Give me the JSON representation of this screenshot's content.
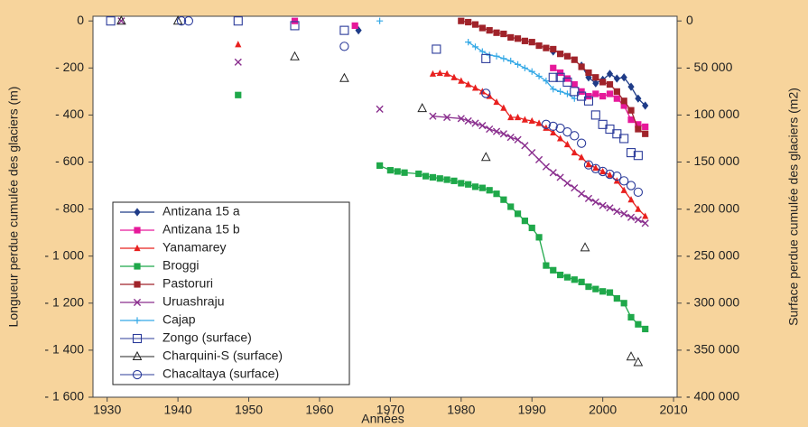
{
  "chart_data": {
    "type": "scatter",
    "xlabel": "Années",
    "ylabel": "Longueur perdue cumulée des glaciers (m)",
    "y2label": "Surface perdue cumulée des glaciers (m2)",
    "xlim": [
      1928,
      2010.5
    ],
    "xticks": [
      1930,
      1940,
      1950,
      1960,
      1970,
      1980,
      1990,
      2000,
      2010
    ],
    "ylim": [
      -1600,
      20
    ],
    "yticks": [
      0,
      {
        "value": -200,
        "label": "- 200"
      },
      {
        "value": -400,
        "label": "- 400"
      },
      {
        "value": -600,
        "label": "- 600"
      },
      {
        "value": -800,
        "label": "- 800"
      },
      {
        "value": -1000,
        "label": "- 1 000"
      },
      {
        "value": -1200,
        "label": "- 1 200"
      },
      {
        "value": -1400,
        "label": "- 1 400"
      },
      {
        "value": -1600,
        "label": "- 1 600"
      }
    ],
    "y2lim": [
      -400000,
      5000
    ],
    "y2ticks": [
      0,
      {
        "value": -50000,
        "label": "- 50 000"
      },
      {
        "value": -100000,
        "label": "- 100 000"
      },
      {
        "value": -150000,
        "label": "- 150 000"
      },
      {
        "value": -200000,
        "label": "- 200 000"
      },
      {
        "value": -250000,
        "label": "- 250 000"
      },
      {
        "value": -300000,
        "label": "- 300 000"
      },
      {
        "value": -350000,
        "label": "- 350 000"
      },
      {
        "value": -400000,
        "label": "- 400 000"
      }
    ],
    "legend": "lower-left",
    "series": [
      {
        "name": "Antizana 15 a",
        "color": "#1f3c88",
        "marker": "diamond",
        "line": true,
        "x": [
          1965.5,
          1993,
          1997,
          1998,
          1999,
          2000,
          2001,
          2002,
          2003,
          2004,
          2005,
          2006
        ],
        "values": [
          -40,
          -130,
          -190,
          -240,
          -265,
          -250,
          -225,
          -245,
          -240,
          -280,
          -330,
          -360
        ]
      },
      {
        "name": "Antizana 15 b",
        "color": "#e6199a",
        "marker": "square",
        "line": true,
        "x": [
          1956.5,
          1965,
          1993,
          1994,
          1995,
          1996,
          1997,
          1998,
          1999,
          2000,
          2001,
          2002,
          2003,
          2004,
          2005,
          2006
        ],
        "values": [
          0,
          -20,
          -200,
          -220,
          -245,
          -270,
          -300,
          -320,
          -310,
          -320,
          -310,
          -330,
          -360,
          -420,
          -440,
          -450
        ]
      },
      {
        "name": "Yanamarey",
        "color": "#e8201f",
        "marker": "triangle",
        "line": true,
        "x": [
          1948.5,
          1976,
          1977,
          1978,
          1979,
          1980,
          1981,
          1982,
          1983,
          1984,
          1985,
          1986,
          1987,
          1988,
          1989,
          1990,
          1991,
          1992,
          1993,
          1994,
          1995,
          1996,
          1997,
          1998,
          1999,
          2000,
          2001,
          2002,
          2003,
          2004,
          2005,
          2006
        ],
        "values": [
          -100,
          -225,
          -222,
          -225,
          -240,
          -255,
          -270,
          -285,
          -300,
          -320,
          -345,
          -370,
          -410,
          -410,
          -420,
          -425,
          -435,
          -455,
          -475,
          -500,
          -525,
          -560,
          -580,
          -610,
          -625,
          -640,
          -655,
          -680,
          -720,
          -760,
          -800,
          -830
        ]
      },
      {
        "name": "Broggi",
        "color": "#1fa84a",
        "marker": "square",
        "line": true,
        "x": [
          1948.5,
          1968.5,
          1970,
          1971,
          1972,
          1974,
          1975,
          1976,
          1977,
          1978,
          1979,
          1980,
          1981,
          1982,
          1983,
          1984,
          1985,
          1986,
          1987,
          1988,
          1989,
          1990,
          1991,
          1992,
          1993,
          1994,
          1995,
          1996,
          1997,
          1998,
          1999,
          2000,
          2001,
          2002,
          2003,
          2004,
          2005,
          2006
        ],
        "values": [
          -315,
          -615,
          -635,
          -640,
          -645,
          -650,
          -660,
          -665,
          -670,
          -675,
          -680,
          -690,
          -695,
          -705,
          -710,
          -720,
          -735,
          -760,
          -790,
          -820,
          -850,
          -880,
          -920,
          -1040,
          -1060,
          -1080,
          -1090,
          -1100,
          -1110,
          -1130,
          -1140,
          -1150,
          -1155,
          -1180,
          -1200,
          -1260,
          -1290,
          -1310
        ]
      },
      {
        "name": "Pastoruri",
        "color": "#a0232a",
        "marker": "square",
        "line": true,
        "x": [
          1980,
          1981,
          1982,
          1983,
          1984,
          1985,
          1986,
          1987,
          1988,
          1989,
          1990,
          1991,
          1992,
          1993,
          1994,
          1995,
          1996,
          1997,
          1998,
          1999,
          2000,
          2001,
          2002,
          2003,
          2004,
          2005,
          2006
        ],
        "values": [
          0,
          -5,
          -15,
          -30,
          -40,
          -50,
          -55,
          -70,
          -75,
          -85,
          -90,
          -105,
          -115,
          -120,
          -140,
          -150,
          -165,
          -195,
          -220,
          -240,
          -260,
          -270,
          -300,
          -340,
          -380,
          -460,
          -480
        ]
      },
      {
        "name": "Uruashraju",
        "color": "#8a2f8e",
        "marker": "x",
        "line": true,
        "x": [
          1932,
          1948.5,
          1968.5,
          1976,
          1978,
          1980,
          1981,
          1982,
          1983,
          1984,
          1985,
          1986,
          1987,
          1988,
          1989,
          1990,
          1991,
          1992,
          1993,
          1994,
          1995,
          1996,
          1997,
          1998,
          1999,
          2000,
          2001,
          2002,
          2003,
          2004,
          2005,
          2006
        ],
        "values": [
          0,
          -175,
          -375,
          -405,
          -410,
          -415,
          -425,
          -435,
          -445,
          -460,
          -470,
          -480,
          -495,
          -505,
          -530,
          -560,
          -590,
          -620,
          -645,
          -665,
          -690,
          -710,
          -735,
          -755,
          -770,
          -785,
          -795,
          -810,
          -820,
          -835,
          -845,
          -860
        ]
      },
      {
        "name": "Cajap",
        "color": "#35a9e6",
        "marker": "plus",
        "line": true,
        "x": [
          1968.5,
          1981,
          1982,
          1983,
          1984,
          1985,
          1986,
          1987,
          1988,
          1989,
          1990,
          1991,
          1992,
          1993,
          1994,
          1995,
          1996
        ],
        "values": [
          0,
          -90,
          -110,
          -130,
          -145,
          -150,
          -160,
          -170,
          -185,
          -200,
          -215,
          -235,
          -255,
          -290,
          -300,
          -310,
          -330
        ]
      },
      {
        "name": "Zongo (surface)",
        "color": "#2b3b9a",
        "marker": "square-open",
        "line": false,
        "axis": "y2",
        "x": [
          1930.5,
          1948.5,
          1956.5,
          1963.5,
          1976.5,
          1983.5,
          1993,
          1994,
          1995,
          1996,
          1997,
          1998,
          1999,
          2000,
          2001,
          2002,
          2003,
          2004,
          2005
        ],
        "values": [
          0,
          0,
          -5000,
          -10000,
          -30000,
          -40000,
          -60000,
          -60000,
          -65000,
          -75000,
          -80000,
          -85000,
          -100000,
          -110000,
          -115000,
          -120000,
          -125000,
          -140000,
          -143000
        ]
      },
      {
        "name": "Charquini-S (surface)",
        "color": "#222222",
        "marker": "triangle-open",
        "line": false,
        "axis": "y2",
        "x": [
          1932,
          1940,
          1956.5,
          1963.5,
          1974.5,
          1983.5,
          1997.5,
          2004,
          2005
        ],
        "values": [
          0,
          0,
          -38000,
          -61000,
          -93000,
          -145000,
          -241000,
          -357000,
          -363000
        ]
      },
      {
        "name": "Chacaltaya (surface)",
        "color": "#2b3b9a",
        "marker": "circle-open",
        "line": false,
        "axis": "y2",
        "x": [
          1940.5,
          1941.5,
          1963.5,
          1983.5,
          1992,
          1993,
          1994,
          1995,
          1996,
          1997,
          1998,
          1999,
          2000,
          2001,
          2002,
          2003,
          2004,
          2005
        ],
        "values": [
          0,
          0,
          -27000,
          -77000,
          -110000,
          -112000,
          -114000,
          -118000,
          -122000,
          -130000,
          -153000,
          -157000,
          -160000,
          -163000,
          -165000,
          -170000,
          -175000,
          -182000
        ]
      }
    ]
  }
}
